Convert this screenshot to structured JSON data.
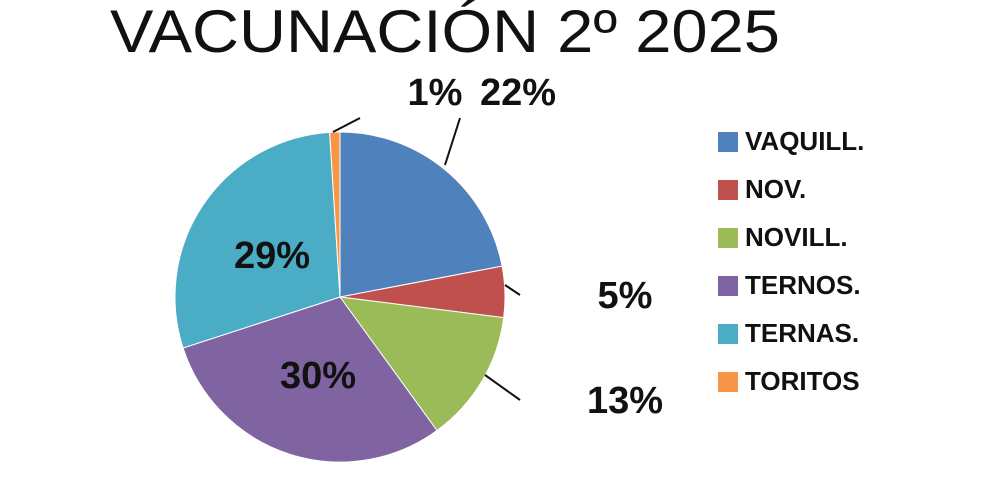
{
  "chart_data": {
    "type": "pie",
    "title": "VACUNACIÓN 2º 2025",
    "categories": [
      "VAQUILL.",
      "NOV.",
      "NOVILL.",
      "TERNOS.",
      "TERNAS.",
      "TORITOS"
    ],
    "values": [
      22,
      5,
      13,
      30,
      29,
      1
    ],
    "value_labels": [
      "22%",
      "5%",
      "13%",
      "30%",
      "29%",
      "1%"
    ],
    "colors": [
      "#4f81bd",
      "#c0504d",
      "#9bbb59",
      "#8064a2",
      "#4bacc6",
      "#f79646"
    ],
    "legend": "right"
  }
}
